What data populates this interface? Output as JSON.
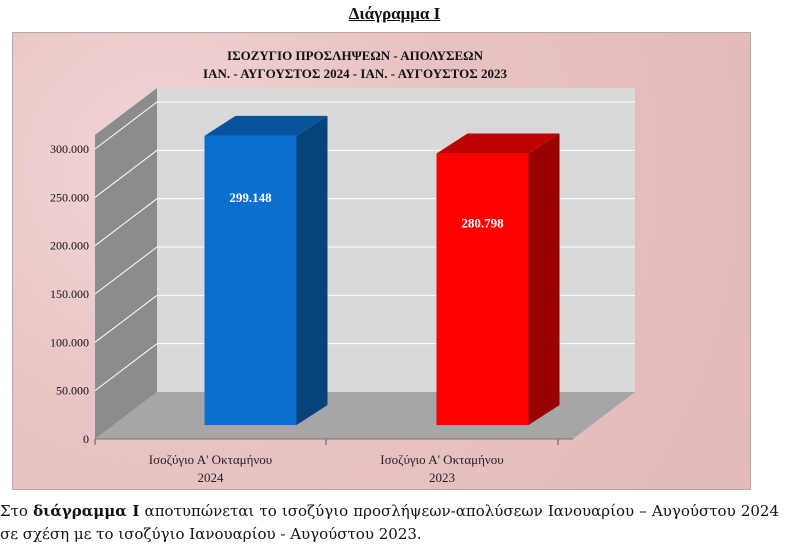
{
  "heading": "Διάγραμμα Ι",
  "chart_data": {
    "type": "bar",
    "title_line1": "ΙΣΟΖΥΓΙΟ ΠΡΟΣΛΗΨΕΩΝ - ΑΠΟΛΥΣΕΩΝ",
    "title_line2": "ΙΑΝ. - ΑΥΓΟΥΣΤΟΣ 2024 - ΙΑΝ. - ΑΥΓΟΥΣΤΟΣ 2023",
    "categories": [
      [
        "Ισοζύγιο Α' Οκταμήνου",
        "2024"
      ],
      [
        "Ισοζύγιο Α' Οκταμήνου",
        "2023"
      ]
    ],
    "values": [
      299148,
      280798
    ],
    "value_labels": [
      "299.148",
      "280.798"
    ],
    "colors": [
      "#0a6fce",
      "#ff0000"
    ],
    "ylim": [
      0,
      300000
    ],
    "yticks": [
      0,
      50000,
      100000,
      150000,
      200000,
      250000,
      300000
    ],
    "ytick_labels": [
      "0",
      "50.000",
      "100.000",
      "150.000",
      "200.000",
      "250.000",
      "300.000"
    ],
    "grid": true,
    "style": "3d-column"
  },
  "caption": {
    "prefix": "Στο ",
    "bold": "διάγραμμα Ι",
    "rest": " αποτυπώνεται το ισοζύγιο προσλήψεων-απολύσεων Ιανουαρίου – Αυγούστου 2024 σε σχέση με το ισοζύγιο Ιανουαρίου - Αυγούστου 2023."
  }
}
